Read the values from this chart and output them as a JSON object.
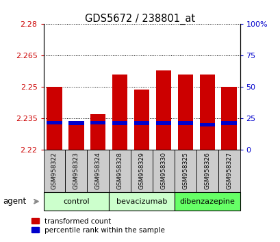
{
  "title": "GDS5672 / 238801_at",
  "samples": [
    "GSM958322",
    "GSM958323",
    "GSM958324",
    "GSM958328",
    "GSM958329",
    "GSM958330",
    "GSM958325",
    "GSM958326",
    "GSM958327"
  ],
  "red_values": [
    2.25,
    2.233,
    2.237,
    2.256,
    2.249,
    2.258,
    2.256,
    2.256,
    2.25
  ],
  "blue_values": [
    2.233,
    2.2328,
    2.233,
    2.2328,
    2.2328,
    2.2328,
    2.2328,
    2.232,
    2.2328
  ],
  "bar_bottom": 2.22,
  "ylim": [
    2.22,
    2.28
  ],
  "yticks_left": [
    2.22,
    2.235,
    2.25,
    2.265,
    2.28
  ],
  "yticks_right": [
    0,
    25,
    50,
    75,
    100
  ],
  "groups": [
    {
      "label": "control",
      "indices": [
        0,
        1,
        2
      ],
      "color": "#ccffcc"
    },
    {
      "label": "bevacizumab",
      "indices": [
        3,
        4,
        5
      ],
      "color": "#ccffcc"
    },
    {
      "label": "dibenzazepine",
      "indices": [
        6,
        7,
        8
      ],
      "color": "#66ff66"
    }
  ],
  "red_color": "#cc0000",
  "blue_color": "#0000cc",
  "bar_width": 0.7,
  "plot_bg": "#ffffff",
  "tick_color_left": "#cc0000",
  "tick_color_right": "#0000cc",
  "agent_label": "agent",
  "legend_red": "transformed count",
  "legend_blue": "percentile rank within the sample",
  "sample_box_color": "#cccccc"
}
